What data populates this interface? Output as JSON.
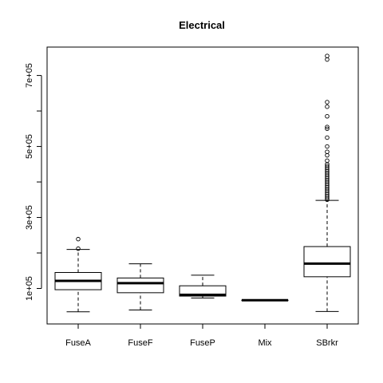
{
  "chart_data": {
    "type": "boxplot",
    "title": "Electrical",
    "xlabel": "",
    "ylabel": "",
    "ylim": [
      0,
      780000
    ],
    "y_ticks": [
      100000,
      300000,
      500000,
      700000
    ],
    "y_tick_labels": [
      "1e+05",
      "3e+05",
      "5e+05",
      "7e+05"
    ],
    "grid": false,
    "legend": "none",
    "categories": [
      "FuseA",
      "FuseF",
      "FuseP",
      "Mix",
      "SBrkr"
    ],
    "boxes": [
      {
        "category": "FuseA",
        "min": 34300,
        "q1": 96500,
        "median": 121250,
        "q3": 145000,
        "max": 210000,
        "outliers": [
          212000,
          239000
        ]
      },
      {
        "category": "FuseF",
        "min": 39300,
        "q1": 88000,
        "median": 115000,
        "q3": 129500,
        "max": 169500,
        "outliers": []
      },
      {
        "category": "FuseP",
        "min": 73000,
        "q1": 78500,
        "median": 82000,
        "q3": 107500,
        "max": 137500,
        "outliers": []
      },
      {
        "category": "Mix",
        "min": 67000,
        "q1": 67000,
        "median": 67000,
        "q3": 67000,
        "max": 67000,
        "outliers": []
      },
      {
        "category": "SBrkr",
        "min": 35000,
        "q1": 133000,
        "median": 170000,
        "q3": 218000,
        "max": 348000,
        "outliers": [
          350000,
          355000,
          360000,
          365000,
          370000,
          375000,
          380000,
          385000,
          390000,
          395000,
          400000,
          405000,
          410000,
          415000,
          420000,
          425000,
          430000,
          435000,
          440000,
          445000,
          450000,
          460000,
          475000,
          485000,
          500000,
          525000,
          550000,
          555000,
          585000,
          612000,
          625000,
          745000,
          755000
        ]
      }
    ]
  }
}
